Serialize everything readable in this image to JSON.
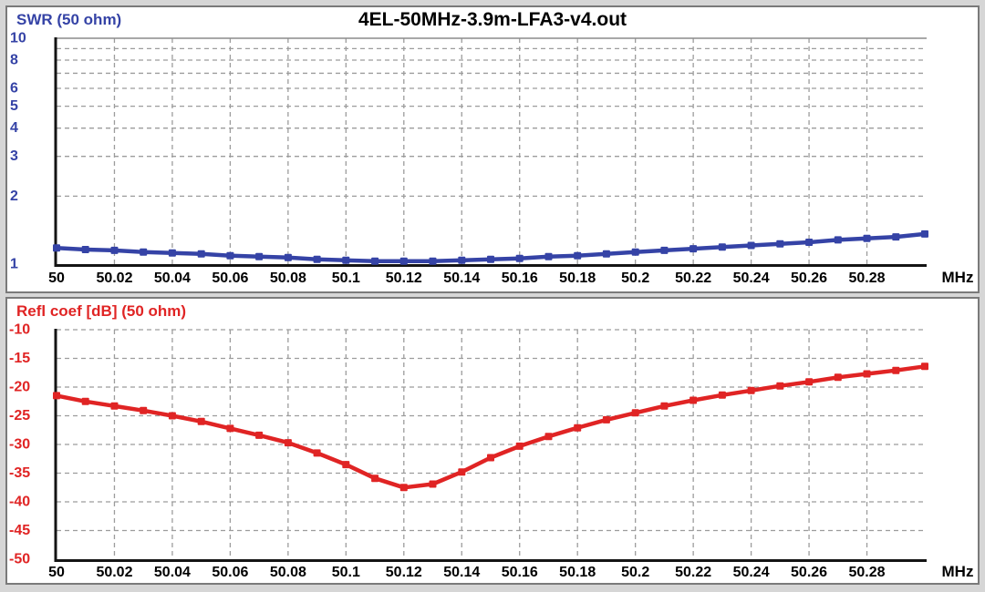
{
  "title": "4EL-50MHz-3.9m-LFA3-v4.out",
  "x_axis": {
    "unit": "MHz",
    "range": [
      50,
      50.3
    ],
    "tick_values": [
      50,
      50.02,
      50.04,
      50.06,
      50.08,
      50.1,
      50.12,
      50.14,
      50.16,
      50.18,
      50.2,
      50.22,
      50.24,
      50.26,
      50.28
    ],
    "tick_labels": [
      "50",
      "50.02",
      "50.04",
      "50.06",
      "50.08",
      "50.1",
      "50.12",
      "50.14",
      "50.16",
      "50.18",
      "50.2",
      "50.22",
      "50.24",
      "50.26",
      "50.28"
    ]
  },
  "chart_data": [
    {
      "type": "line",
      "name": "swr",
      "title": "SWR (50 ohm)",
      "color": "#3543a6",
      "yscale": "log",
      "ylim": [
        1,
        10
      ],
      "y_tick_values": [
        10,
        8,
        6,
        5,
        4,
        3,
        2,
        1
      ],
      "y_tick_labels": [
        "10",
        "8",
        "6",
        "5",
        "4",
        "3",
        "2",
        "1"
      ],
      "y_gridlines": [
        2,
        3,
        4,
        5,
        6,
        7,
        8,
        9
      ],
      "x": [
        50,
        50.01,
        50.02,
        50.03,
        50.04,
        50.05,
        50.06,
        50.07,
        50.08,
        50.09,
        50.1,
        50.11,
        50.12,
        50.13,
        50.14,
        50.15,
        50.16,
        50.17,
        50.18,
        50.19,
        50.2,
        50.21,
        50.22,
        50.23,
        50.24,
        50.25,
        50.26,
        50.27,
        50.28,
        50.29,
        50.3
      ],
      "values": [
        1.18,
        1.16,
        1.15,
        1.13,
        1.12,
        1.11,
        1.09,
        1.08,
        1.07,
        1.05,
        1.04,
        1.03,
        1.03,
        1.03,
        1.04,
        1.05,
        1.06,
        1.08,
        1.09,
        1.11,
        1.13,
        1.15,
        1.17,
        1.19,
        1.21,
        1.23,
        1.25,
        1.28,
        1.3,
        1.32,
        1.36
      ]
    },
    {
      "type": "line",
      "name": "refl-coef",
      "title": "Refl coef [dB] (50 ohm)",
      "color": "#e02424",
      "yscale": "linear",
      "ylim": [
        -50,
        -10
      ],
      "y_tick_values": [
        -10,
        -15,
        -20,
        -25,
        -30,
        -35,
        -40,
        -45,
        -50
      ],
      "y_tick_labels": [
        "-10",
        "-15",
        "-20",
        "-25",
        "-30",
        "-35",
        "-40",
        "-45",
        "-50"
      ],
      "y_gridlines": [
        -10,
        -15,
        -20,
        -25,
        -30,
        -35,
        -40,
        -45
      ],
      "x": [
        50,
        50.01,
        50.02,
        50.03,
        50.04,
        50.05,
        50.06,
        50.07,
        50.08,
        50.09,
        50.1,
        50.11,
        50.12,
        50.13,
        50.14,
        50.15,
        50.16,
        50.17,
        50.18,
        50.19,
        50.2,
        50.21,
        50.22,
        50.23,
        50.24,
        50.25,
        50.26,
        50.27,
        50.28,
        50.29,
        50.3
      ],
      "values": [
        -21.5,
        -22.5,
        -23.3,
        -24.1,
        -25,
        -26,
        -27.2,
        -28.4,
        -29.7,
        -31.5,
        -33.5,
        -35.9,
        -37.5,
        -36.9,
        -34.8,
        -32.3,
        -30.3,
        -28.6,
        -27.1,
        -25.7,
        -24.5,
        -23.3,
        -22.3,
        -21.4,
        -20.6,
        -19.8,
        -19.1,
        -18.3,
        -17.7,
        -17.1,
        -16.4
      ]
    }
  ],
  "colors": {
    "grid": "#9c9c9c",
    "axis": "#141414",
    "panel_bg": "#ffffff",
    "frame_bg": "#d6d6d6",
    "panel_border": "#7a7a7a",
    "title_text": "#000000"
  }
}
